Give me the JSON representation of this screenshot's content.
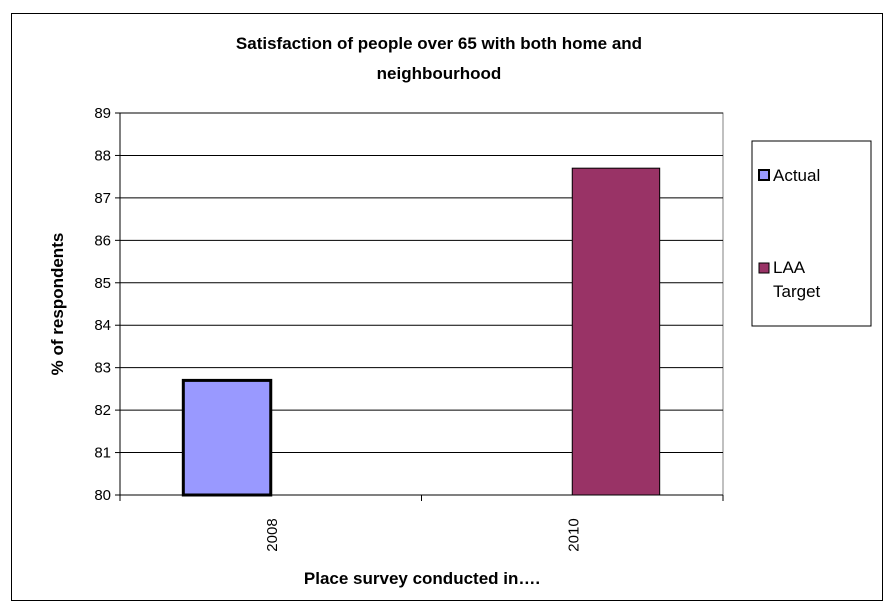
{
  "chart_data": {
    "type": "bar",
    "title": [
      "Satisfaction of people over 65 with both home and",
      "neighbourhood"
    ],
    "xlabel": "Place survey conducted in….",
    "ylabel": "% of respondents",
    "categories": [
      "2008",
      "2010"
    ],
    "ylim": [
      80,
      89
    ],
    "yticks": [
      "80",
      "81",
      "82",
      "83",
      "84",
      "85",
      "86",
      "87",
      "88",
      "89"
    ],
    "grid": true,
    "legend_position": "right",
    "series": [
      {
        "name": "Actual",
        "values": [
          82.7,
          null
        ],
        "color": "#9999ff"
      },
      {
        "name": "LAA Target",
        "values": [
          null,
          87.7
        ],
        "color": "#993366"
      }
    ],
    "legend_labels": [
      [
        "Actual"
      ],
      [
        "LAA",
        "Target"
      ]
    ]
  }
}
